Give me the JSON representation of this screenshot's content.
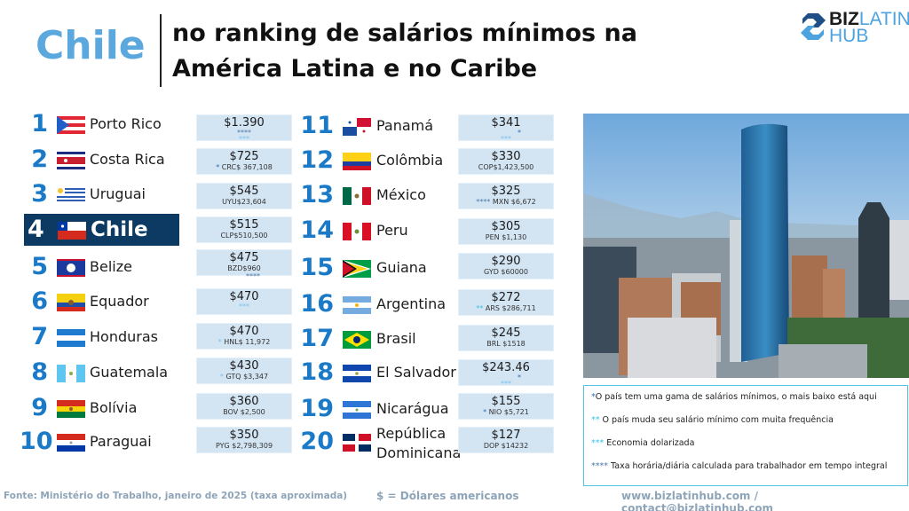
{
  "header": {
    "country": "Chile",
    "title_line1": "no ranking de salários mínimos na",
    "title_line2": "América Latina e no Caribe"
  },
  "logo": {
    "part1": "BIZ",
    "part2": "LATIN",
    "part3": "HUB"
  },
  "colors": {
    "accent_blue": "#1a7ac8",
    "title_blue": "#5aa8dd",
    "highlight_navy": "#0d3a63",
    "salary_box": "#d3e4f3",
    "notes_border": "#52c6de",
    "footer_gray": "#8ea4b8"
  },
  "ranking": [
    {
      "rank": "1",
      "country": "Porto Rico",
      "usd": "$1.390",
      "local": "",
      "marks": [
        {
          "t": "****",
          "c": "st4"
        },
        {
          "t": "***",
          "c": "st3"
        }
      ]
    },
    {
      "rank": "2",
      "country": "Costa Rica",
      "usd": "$725",
      "local": "CRC$ 367,108",
      "prefix": "*",
      "prefix_class": "st1"
    },
    {
      "rank": "3",
      "country": "Uruguai",
      "usd": "$545",
      "local": "UYU$23,604"
    },
    {
      "rank": "4",
      "country": "Chile",
      "usd": "$515",
      "local": "CLP$510,500",
      "highlight": true
    },
    {
      "rank": "5",
      "country": "Belize",
      "usd": "$475",
      "local": "BZD$960",
      "marks": [
        {
          "t": "****",
          "c": "st4"
        }
      ]
    },
    {
      "rank": "6",
      "country": "Equador",
      "usd": "$470",
      "local": "",
      "marks": [
        {
          "t": "***",
          "c": "st3"
        }
      ]
    },
    {
      "rank": "7",
      "country": "Honduras",
      "usd": "$470",
      "local": "HNL$ 11,972",
      "prefix": "*",
      "prefix_class": "st3"
    },
    {
      "rank": "8",
      "country": "Guatemala",
      "usd": "$430",
      "local": "GTQ $3,347",
      "prefix": "*",
      "prefix_class": "st3"
    },
    {
      "rank": "9",
      "country": "Bolívia",
      "usd": "$360",
      "local": "BOV $2,500"
    },
    {
      "rank": "10",
      "country": "Paraguai",
      "usd": "$350",
      "local": "PYG $2,798,309"
    },
    {
      "rank": "11",
      "country": "Panamá",
      "usd": "$341",
      "local": "",
      "marks": [
        {
          "t": "*",
          "c": "st1"
        },
        {
          "t": "***",
          "c": "st3"
        }
      ]
    },
    {
      "rank": "12",
      "country": "Colômbia",
      "usd": "$330",
      "local": "COP$1,423,500"
    },
    {
      "rank": "13",
      "country": "México",
      "usd": "$325",
      "local": "MXN $6,672",
      "prefix": "****",
      "prefix_class": "st4"
    },
    {
      "rank": "14",
      "country": "Peru",
      "usd": "$305",
      "local": "PEN $1,130"
    },
    {
      "rank": "15",
      "country": "Guiana",
      "usd": "$290",
      "local": "GYD $60000"
    },
    {
      "rank": "16",
      "country": "Argentina",
      "usd": "$272",
      "local": "ARS $286,711",
      "prefix": "**",
      "prefix_class": "st2"
    },
    {
      "rank": "17",
      "country": "Brasil",
      "usd": "$245",
      "local": "BRL $1518"
    },
    {
      "rank": "18",
      "country": "El Salvador",
      "usd": "$243.46",
      "local": "",
      "marks": [
        {
          "t": "*",
          "c": "st1"
        },
        {
          "t": "***",
          "c": "st3"
        }
      ]
    },
    {
      "rank": "19",
      "country": "Nicarágua",
      "usd": "$155",
      "local": "NIO  $5,721",
      "prefix": "*",
      "prefix_class": "st1"
    },
    {
      "rank": "20",
      "country": "República",
      "country_line2": "Dominicana",
      "usd": "$127",
      "local": "DOP $14232"
    }
  ],
  "notes": [
    {
      "marker": "*",
      "text": "O país tem uma gama de salários mínimos, o mais baixo está aqui"
    },
    {
      "marker": "**",
      "text": " O país muda seu salário mínimo com muita frequência"
    },
    {
      "marker": "***",
      "text": " Economia dolarizada"
    },
    {
      "marker": "****",
      "text": " Taxa horária/diária calculada para trabalhador em tempo integral"
    }
  ],
  "footer": {
    "source": "Fonte: Ministério do Trabalho, janeiro de 2025 (taxa aproximada)",
    "currency": "$ = Dólares americanos",
    "contact": "www.bizlatinhub.com / contact@bizlatinhub.com"
  }
}
